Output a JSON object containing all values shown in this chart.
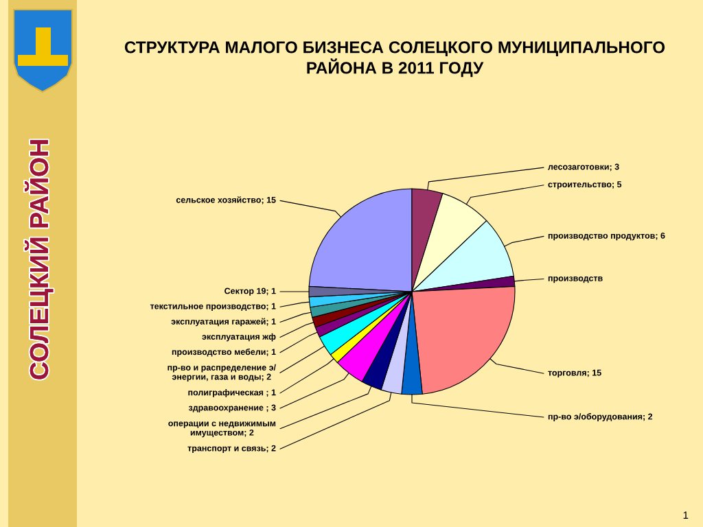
{
  "chart_data": {
    "type": "pie",
    "title": "СТРУКТУРА МАЛОГО БИЗНЕСА СОЛЕЦКОГО МУНИЦИПАЛЬНОГО\nРАЙОНА В 2011 ГОДУ",
    "categories": [
      "сельское хозяйство; 15",
      "лесозаготовки; 3",
      "строительство; 5",
      "производство продуктов; 6",
      "производств",
      "торговля; 15",
      "пр-во э/оборудования; 2",
      "транспорт и связь; 2",
      "операции с недвижимым\nимуществом; 2",
      "здравоохранение ; 3",
      "полиграфическая ; 1",
      "пр-во и распределение э/\nэнергии, газа и воды; 2",
      "производство мебели; 1",
      "эксплуатация жф",
      "эксплуатация гаражей; 1",
      "текстильное производство; 1",
      "Сектор 19; 1"
    ],
    "values": [
      15,
      3,
      5,
      6,
      1,
      15,
      2,
      2,
      2,
      3,
      1,
      2,
      1,
      1,
      1,
      1,
      1
    ],
    "colors": [
      "#9999ff",
      "#993366",
      "#ffffcc",
      "#ccffff",
      "#660066",
      "#ff8080",
      "#0066cc",
      "#ccccff",
      "#000080",
      "#ff00ff",
      "#ffff00",
      "#00ffff",
      "#800080",
      "#800000",
      "#339999",
      "#33ccff",
      "#666699"
    ],
    "annotations": [
      "СОЛЕЦКИЙ РАЙОН",
      "1"
    ]
  }
}
